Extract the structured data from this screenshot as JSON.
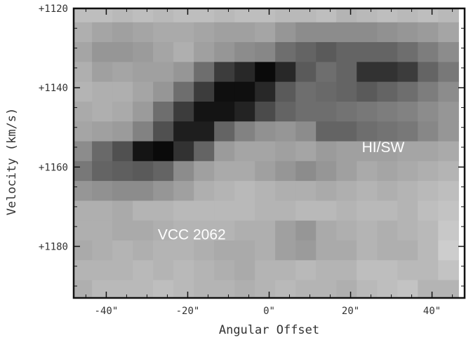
{
  "chart_data": {
    "type": "heatmap",
    "title": "",
    "xlabel": "Angular Offset",
    "ylabel": "Velocity (km/s)",
    "xlim": [
      -48,
      48
    ],
    "ylim": [
      1120,
      1193
    ],
    "y_inverted": true,
    "colormap": "gray",
    "x_ticks": [
      {
        "value": -40,
        "label": "-40\""
      },
      {
        "value": -20,
        "label": "-20\""
      },
      {
        "value": 0,
        "label": "0\""
      },
      {
        "value": 20,
        "label": "20\""
      },
      {
        "value": 40,
        "label": "40\""
      }
    ],
    "y_ticks": [
      {
        "value": 1120,
        "label": "+1120"
      },
      {
        "value": 1140,
        "label": "+1140"
      },
      {
        "value": 1160,
        "label": "+1160"
      },
      {
        "value": 1180,
        "label": "+1180"
      }
    ],
    "x_centers": [
      -46,
      -41,
      -36,
      -31,
      -26,
      -21,
      -16,
      -11,
      -6,
      -1,
      4,
      9,
      14,
      19,
      24,
      29,
      34,
      39,
      44
    ],
    "y_centers": [
      1121,
      1126,
      1131,
      1136,
      1141,
      1146,
      1151,
      1156,
      1161,
      1166,
      1171,
      1176,
      1181,
      1186,
      1191
    ],
    "grid": [
      [
        190,
        190,
        185,
        190,
        185,
        190,
        190,
        185,
        190,
        190,
        185,
        185,
        190,
        180,
        185,
        190,
        185,
        190,
        185
      ],
      [
        175,
        165,
        160,
        165,
        170,
        170,
        165,
        160,
        160,
        165,
        150,
        140,
        140,
        140,
        140,
        145,
        150,
        155,
        165
      ],
      [
        165,
        150,
        150,
        155,
        165,
        175,
        160,
        150,
        140,
        135,
        110,
        100,
        90,
        100,
        100,
        100,
        110,
        125,
        140
      ],
      [
        175,
        160,
        165,
        160,
        160,
        150,
        110,
        60,
        40,
        10,
        40,
        90,
        110,
        100,
        50,
        50,
        60,
        100,
        120
      ],
      [
        180,
        175,
        175,
        165,
        150,
        110,
        60,
        15,
        15,
        40,
        90,
        110,
        105,
        100,
        90,
        100,
        110,
        125,
        140
      ],
      [
        170,
        175,
        170,
        155,
        110,
        60,
        20,
        20,
        35,
        75,
        100,
        110,
        110,
        115,
        120,
        125,
        130,
        140,
        150
      ],
      [
        165,
        160,
        155,
        130,
        80,
        30,
        30,
        100,
        130,
        145,
        150,
        140,
        100,
        100,
        110,
        115,
        120,
        135,
        150
      ],
      [
        140,
        105,
        80,
        20,
        10,
        50,
        100,
        155,
        165,
        165,
        160,
        165,
        155,
        160,
        160,
        160,
        165,
        165,
        170
      ],
      [
        120,
        100,
        95,
        90,
        100,
        140,
        160,
        170,
        170,
        160,
        150,
        140,
        150,
        160,
        170,
        165,
        170,
        175,
        180
      ],
      [
        150,
        145,
        140,
        140,
        150,
        160,
        175,
        180,
        185,
        180,
        175,
        175,
        170,
        175,
        180,
        175,
        180,
        185,
        190
      ],
      [
        175,
        175,
        170,
        180,
        180,
        185,
        185,
        185,
        185,
        180,
        180,
        185,
        185,
        180,
        185,
        185,
        180,
        190,
        195
      ],
      [
        175,
        175,
        170,
        170,
        175,
        180,
        180,
        180,
        175,
        175,
        160,
        150,
        170,
        175,
        180,
        175,
        180,
        185,
        200
      ],
      [
        170,
        175,
        180,
        175,
        180,
        180,
        175,
        170,
        170,
        175,
        160,
        155,
        170,
        170,
        180,
        175,
        175,
        185,
        205
      ],
      [
        180,
        180,
        180,
        185,
        180,
        185,
        180,
        175,
        170,
        180,
        180,
        185,
        180,
        180,
        190,
        190,
        185,
        185,
        195
      ],
      [
        175,
        185,
        185,
        185,
        190,
        185,
        180,
        180,
        175,
        180,
        185,
        180,
        180,
        175,
        185,
        190,
        195,
        180,
        180
      ]
    ],
    "annotations": [
      {
        "text": "HI/SW",
        "x": 28,
        "y": 1155
      },
      {
        "text": "VCC 2062",
        "x": -19,
        "y": 1177
      }
    ]
  }
}
